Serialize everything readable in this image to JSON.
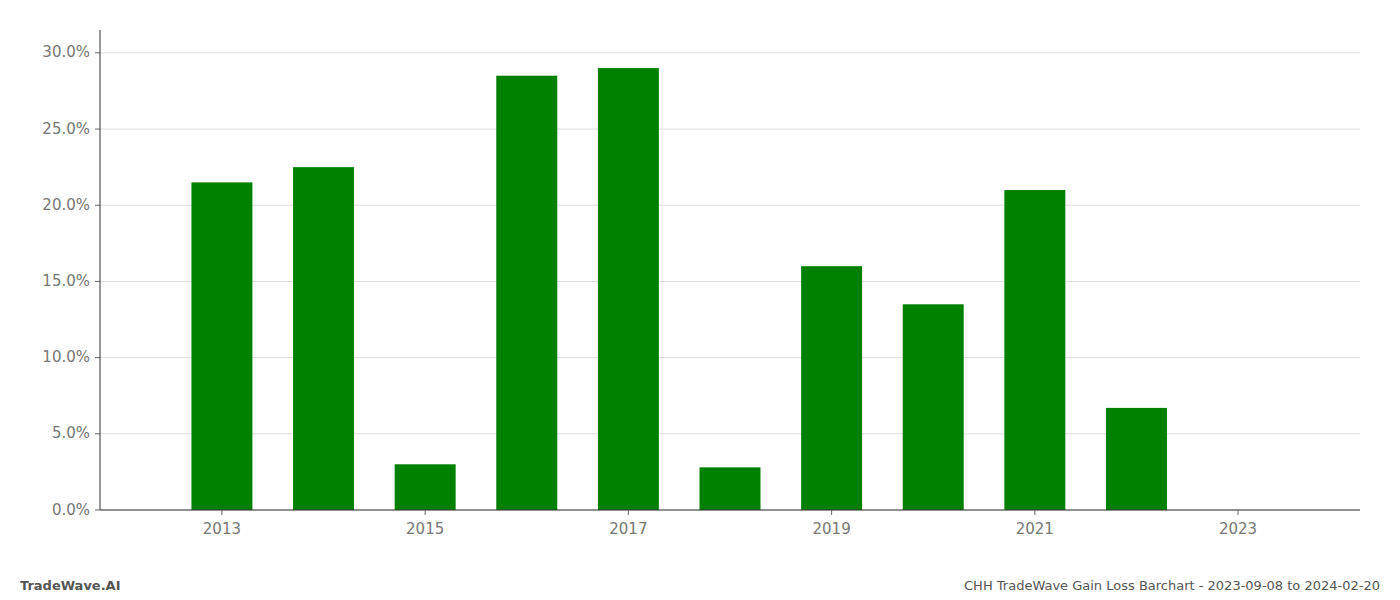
{
  "chart_data": {
    "type": "bar",
    "x": [
      2013,
      2014,
      2015,
      2016,
      2017,
      2018,
      2019,
      2020,
      2021,
      2022,
      2023
    ],
    "values": [
      0.215,
      0.225,
      0.03,
      0.285,
      0.29,
      0.028,
      0.16,
      0.135,
      0.21,
      0.067,
      0.0
    ],
    "color": "#008000",
    "xlim": [
      2011.8,
      2024.2
    ],
    "xticks": [
      2013,
      2015,
      2017,
      2019,
      2021,
      2023
    ],
    "ylim": [
      0,
      0.315
    ],
    "yticks": [
      {
        "value": 0.0,
        "label": "0.0%"
      },
      {
        "value": 0.05,
        "label": "5.0%"
      },
      {
        "value": 0.1,
        "label": "10.0%"
      },
      {
        "value": 0.15,
        "label": "15.0%"
      },
      {
        "value": 0.2,
        "label": "20.0%"
      },
      {
        "value": 0.25,
        "label": "25.0%"
      },
      {
        "value": 0.3,
        "label": "30.0%"
      }
    ],
    "grid": true,
    "annotations": [
      "TradeWave.AI",
      "CHH TradeWave Gain Loss Barchart - 2023-09-08 to 2024-02-20"
    ]
  }
}
